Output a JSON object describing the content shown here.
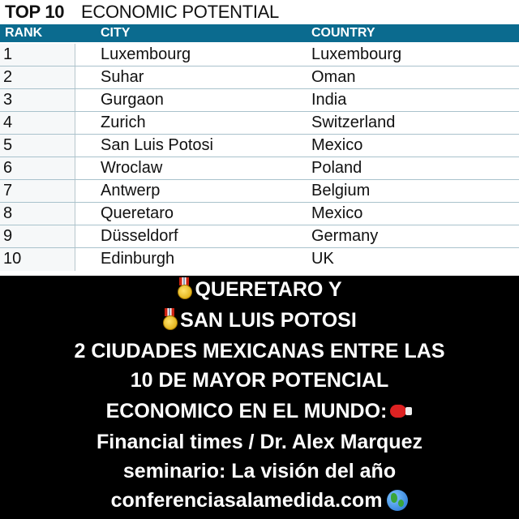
{
  "table": {
    "title_bold": "TOP 10",
    "title_rest": "ECONOMIC POTENTIAL",
    "columns": {
      "rank": "RANK",
      "city": "CITY",
      "country": "COUNTRY"
    },
    "rows": [
      {
        "rank": "1",
        "city": "Luxembourg",
        "country": "Luxembourg"
      },
      {
        "rank": "2",
        "city": "Suhar",
        "country": "Oman"
      },
      {
        "rank": "3",
        "city": "Gurgaon",
        "country": "India"
      },
      {
        "rank": "4",
        "city": "Zurich",
        "country": "Switzerland"
      },
      {
        "rank": "5",
        "city": "San Luis Potosi",
        "country": "Mexico"
      },
      {
        "rank": "6",
        "city": "Wroclaw",
        "country": "Poland"
      },
      {
        "rank": "7",
        "city": "Antwerp",
        "country": "Belgium"
      },
      {
        "rank": "8",
        "city": "Queretaro",
        "country": "Mexico"
      },
      {
        "rank": "9",
        "city": "Düsseldorf",
        "country": "Germany"
      },
      {
        "rank": "10",
        "city": "Edinburgh",
        "country": "UK"
      }
    ],
    "header_color": "#0b6b8f"
  },
  "caption": {
    "line1": "QUERETARO Y",
    "line2": "SAN LUIS POTOSI",
    "line3": "2 CIUDADES MEXICANAS ENTRE LAS",
    "line4": "10 DE MAYOR POTENCIAL",
    "line5": "ECONOMICO EN EL MUNDO:",
    "line6": "Financial times / Dr. Alex Marquez",
    "line7": "seminario: La visión del año",
    "line8": "conferenciasalamedida.com",
    "icons": [
      "medal-icon",
      "medal-icon",
      "boxing-glove-icon",
      "globe-icon"
    ]
  }
}
